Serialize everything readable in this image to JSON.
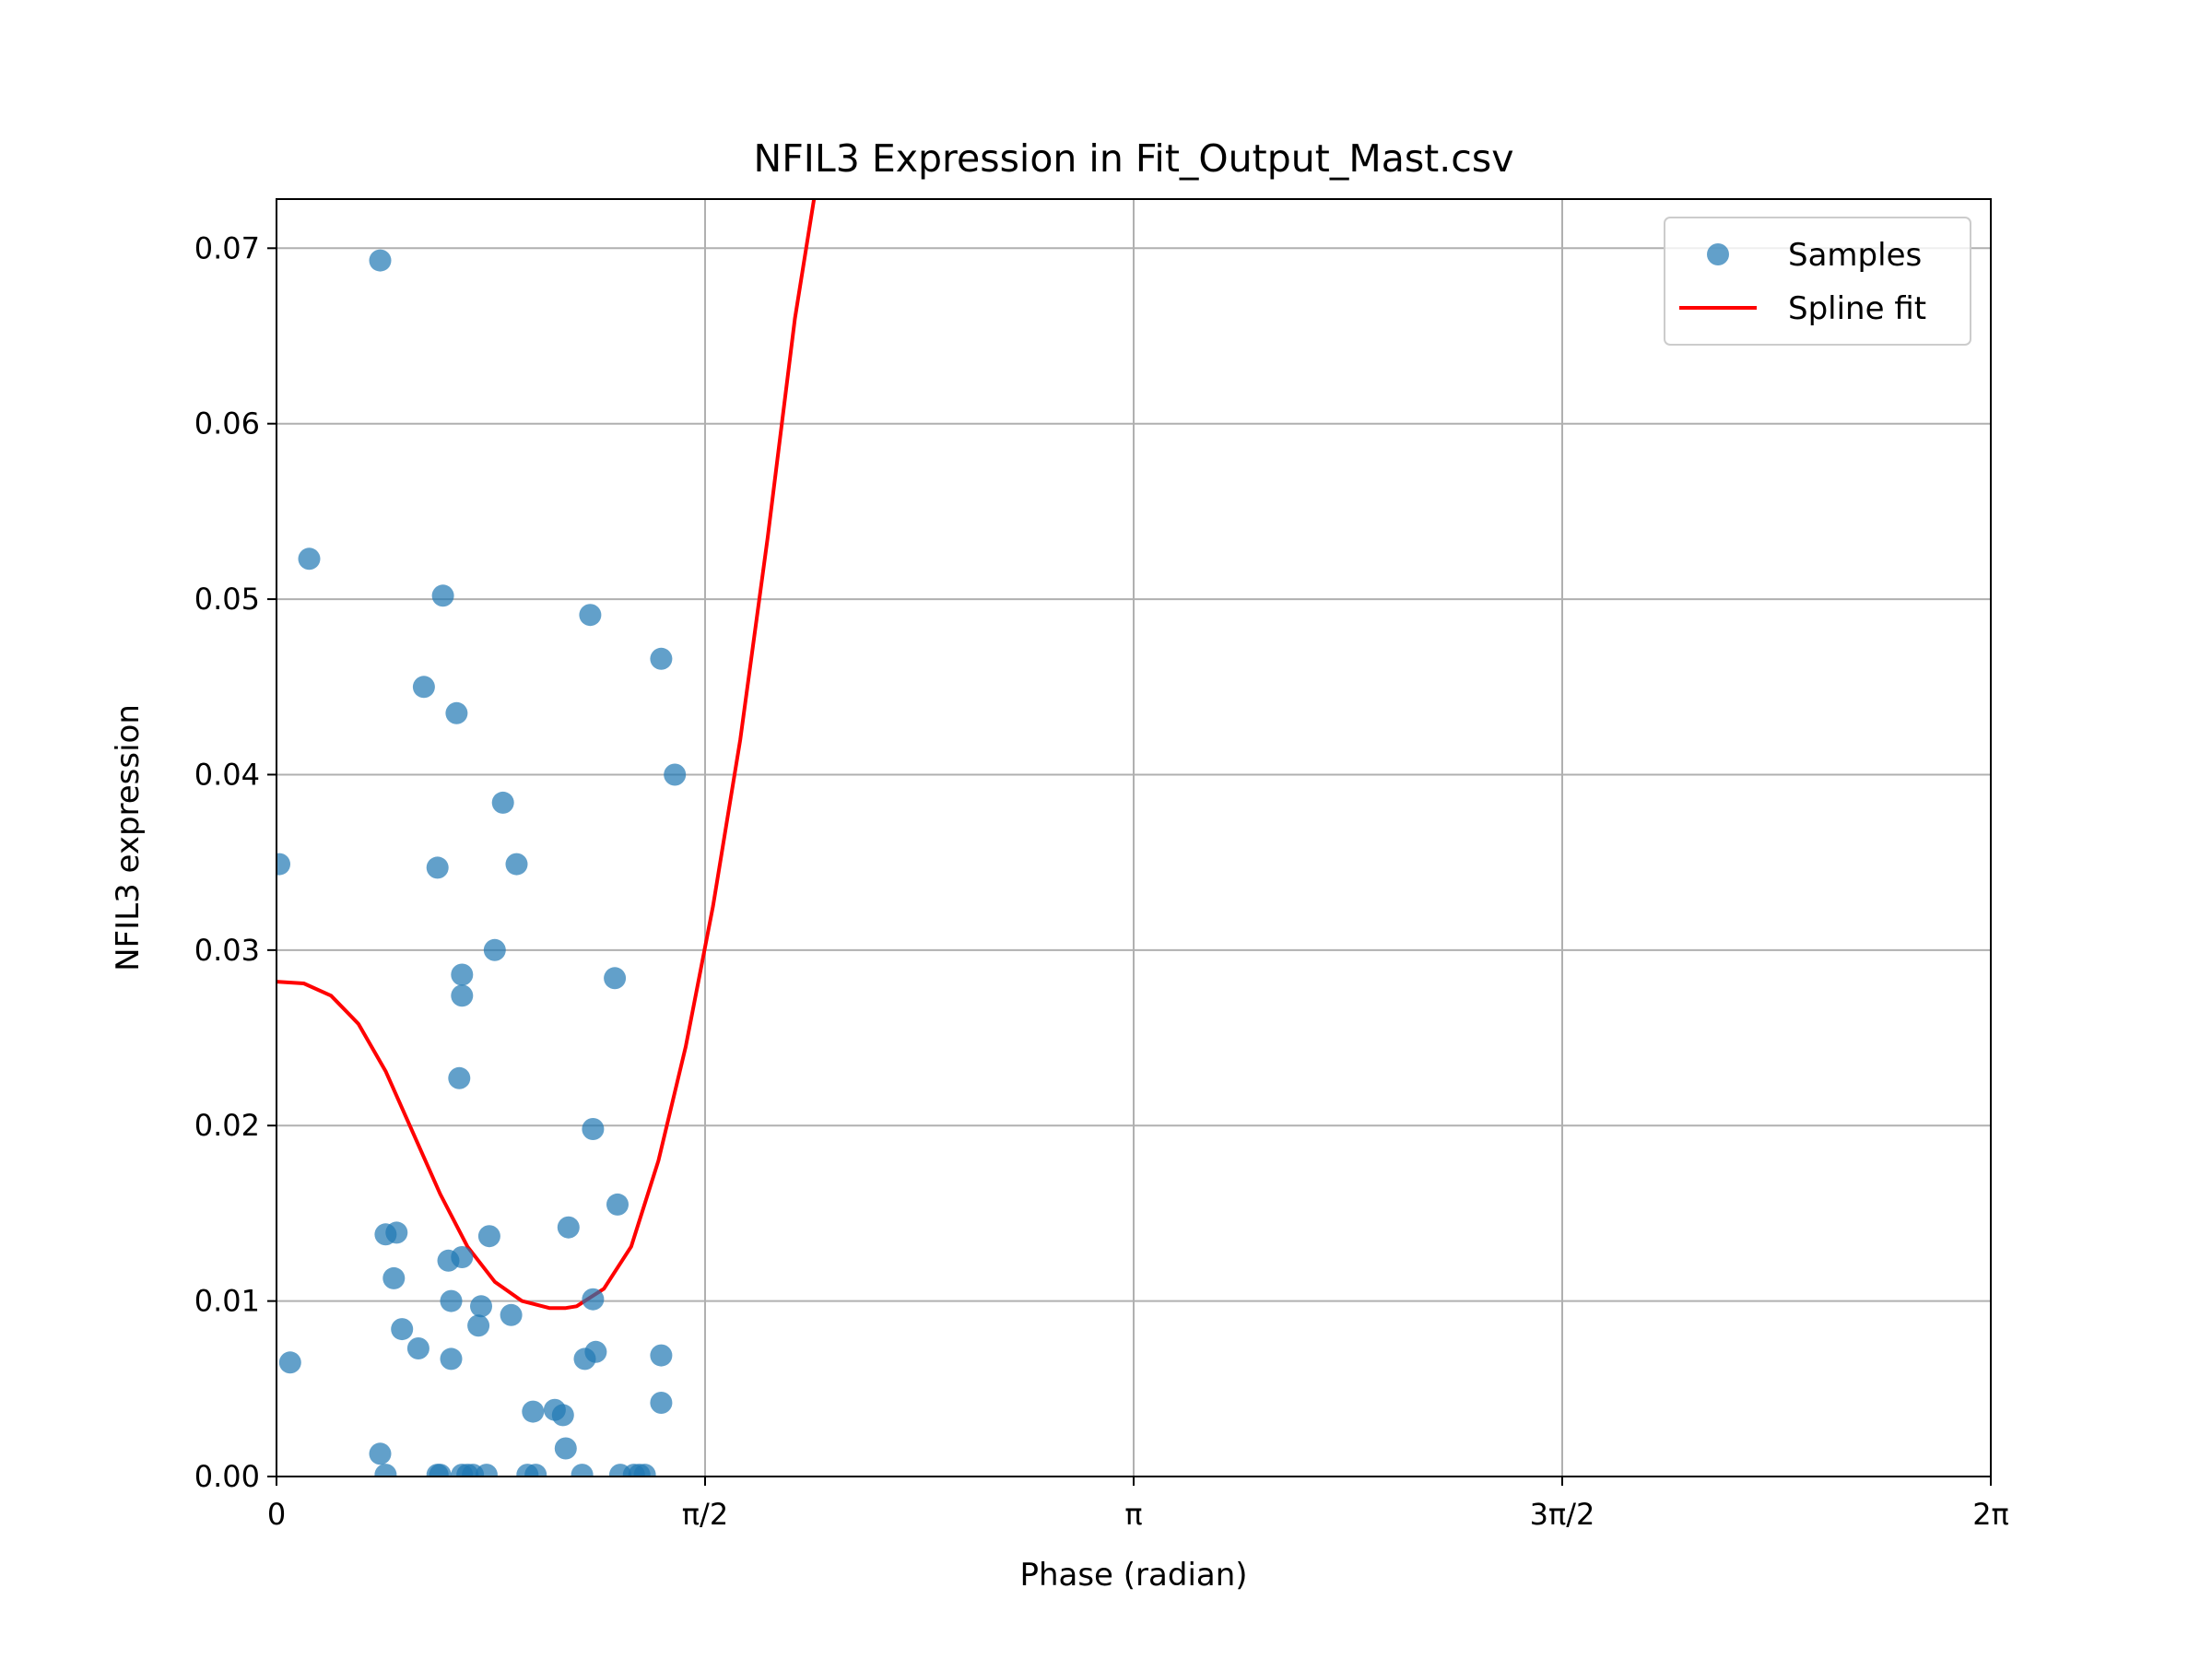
{
  "chart_data": {
    "type": "scatter",
    "title": "NFIL3 Expression in Fit_Output_Mast.csv",
    "xlabel": "Phase (radian)",
    "ylabel": "NFIL3 expression",
    "xlim": [
      0,
      6.283185
    ],
    "ylim": [
      0,
      0.0728
    ],
    "x_scale_multiple_of_pi": true,
    "grid": true,
    "legend_position": "top-right",
    "x_ticks": [
      {
        "value": 0,
        "label": "0"
      },
      {
        "value": 1.570796,
        "label": "π/2"
      },
      {
        "value": 3.141593,
        "label": "π"
      },
      {
        "value": 4.712389,
        "label": "3π/2"
      },
      {
        "value": 6.283185,
        "label": "2π"
      }
    ],
    "y_ticks": [
      {
        "value": 0.0,
        "label": "0.00"
      },
      {
        "value": 0.01,
        "label": "0.01"
      },
      {
        "value": 0.02,
        "label": "0.02"
      },
      {
        "value": 0.03,
        "label": "0.03"
      },
      {
        "value": 0.04,
        "label": "0.04"
      },
      {
        "value": 0.05,
        "label": "0.05"
      },
      {
        "value": 0.06,
        "label": "0.06"
      },
      {
        "value": 0.07,
        "label": "0.07"
      }
    ],
    "series": [
      {
        "name": "Samples",
        "kind": "scatter",
        "color": "#1f77b4",
        "points": [
          [
            0.01,
            0.0349
          ],
          [
            0.05,
            0.0065
          ],
          [
            0.12,
            0.0523
          ],
          [
            0.38,
            0.0693
          ],
          [
            0.38,
            0.0013
          ],
          [
            0.4,
            0.0138
          ],
          [
            0.4,
            0.0001
          ],
          [
            0.43,
            0.0113
          ],
          [
            0.44,
            0.0139
          ],
          [
            0.46,
            0.0084
          ],
          [
            0.52,
            0.0073
          ],
          [
            0.54,
            0.045
          ],
          [
            0.59,
            0.0347
          ],
          [
            0.59,
            0.0001
          ],
          [
            0.6,
            0.0001
          ],
          [
            0.61,
            0.0502
          ],
          [
            0.63,
            0.0123
          ],
          [
            0.64,
            0.01
          ],
          [
            0.64,
            0.0067
          ],
          [
            0.66,
            0.0435
          ],
          [
            0.67,
            0.0227
          ],
          [
            0.68,
            0.0125
          ],
          [
            0.68,
            0.0274
          ],
          [
            0.68,
            0.0286
          ],
          [
            0.68,
            0.0001
          ],
          [
            0.7,
            0.0001
          ],
          [
            0.72,
            0.0001
          ],
          [
            0.74,
            0.0086
          ],
          [
            0.75,
            0.0097
          ],
          [
            0.77,
            0.0001
          ],
          [
            0.78,
            0.0137
          ],
          [
            0.8,
            0.03
          ],
          [
            0.83,
            0.0384
          ],
          [
            0.86,
            0.0092
          ],
          [
            0.88,
            0.0349
          ],
          [
            0.92,
            0.0001
          ],
          [
            0.94,
            0.0037
          ],
          [
            0.95,
            0.0001
          ],
          [
            1.02,
            0.0038
          ],
          [
            1.05,
            0.0035
          ],
          [
            1.06,
            0.0016
          ],
          [
            1.07,
            0.0142
          ],
          [
            1.12,
            0.0001
          ],
          [
            1.13,
            0.0067
          ],
          [
            1.15,
            0.0491
          ],
          [
            1.16,
            0.0198
          ],
          [
            1.16,
            0.0101
          ],
          [
            1.17,
            0.0071
          ],
          [
            1.24,
            0.0284
          ],
          [
            1.25,
            0.0155
          ],
          [
            1.26,
            0.0001
          ],
          [
            1.31,
            0.0001
          ],
          [
            1.33,
            0.0001
          ],
          [
            1.35,
            0.0001
          ],
          [
            1.41,
            0.0466
          ],
          [
            1.41,
            0.0069
          ],
          [
            1.41,
            0.0042
          ],
          [
            1.46,
            0.04
          ]
        ]
      },
      {
        "name": "Spline fit",
        "kind": "line",
        "color": "#ff0000",
        "points": [
          [
            0.0,
            0.0282
          ],
          [
            0.1,
            0.0281
          ],
          [
            0.2,
            0.0274
          ],
          [
            0.3,
            0.0258
          ],
          [
            0.4,
            0.0231
          ],
          [
            0.5,
            0.0196
          ],
          [
            0.6,
            0.0161
          ],
          [
            0.7,
            0.0131
          ],
          [
            0.8,
            0.0111
          ],
          [
            0.9,
            0.01
          ],
          [
            1.0,
            0.0096
          ],
          [
            1.06,
            0.0096
          ],
          [
            1.1,
            0.0097
          ],
          [
            1.2,
            0.0107
          ],
          [
            1.3,
            0.0131
          ],
          [
            1.4,
            0.018
          ],
          [
            1.5,
            0.0245
          ],
          [
            1.6,
            0.0325
          ],
          [
            1.7,
            0.042
          ],
          [
            1.8,
            0.0535
          ],
          [
            1.9,
            0.066
          ],
          [
            1.97,
            0.0728
          ]
        ]
      }
    ]
  }
}
